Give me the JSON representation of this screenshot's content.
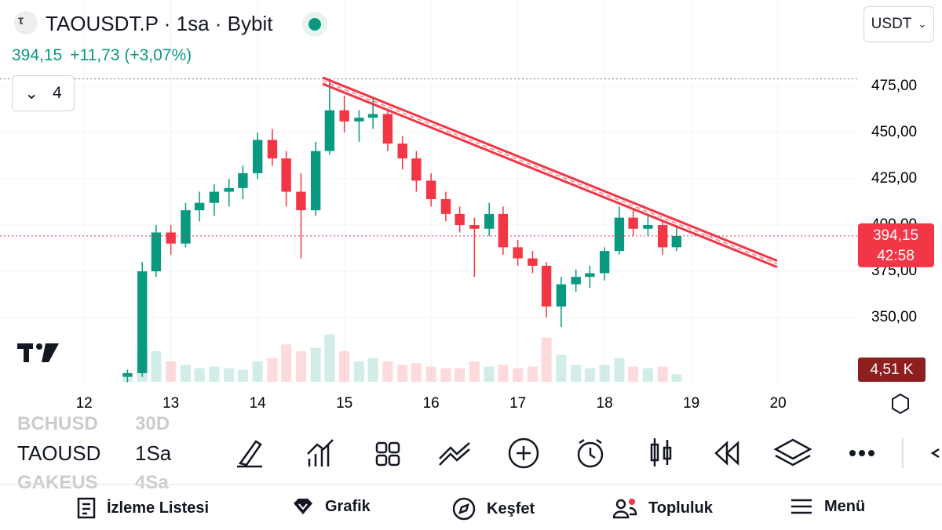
{
  "header": {
    "symbol": "TAOUSDT.P · 1sa · Bybit",
    "last": "394,15",
    "change": "+11,73 (+3,07%)",
    "currency": "USDT",
    "indicators": "4"
  },
  "chart_data": {
    "type": "candlestick",
    "x": [
      12.5,
      12.67,
      12.83,
      13,
      13.17,
      13.33,
      13.5,
      13.67,
      13.83,
      14,
      14.17,
      14.33,
      14.5,
      14.67,
      14.83,
      15,
      15.17,
      15.33,
      15.5,
      15.67,
      15.83,
      16,
      16.17,
      16.33,
      16.5,
      16.67,
      16.83,
      17,
      17.17,
      17.33,
      17.5,
      17.67,
      17.83,
      18,
      18.17,
      18.33,
      18.5,
      18.67,
      18.83
    ],
    "open": [
      318,
      320,
      375,
      396,
      390,
      408,
      412,
      418,
      420,
      428,
      446,
      436,
      418,
      408,
      440,
      462,
      456,
      458,
      460,
      444,
      436,
      424,
      414,
      406,
      400,
      398,
      406,
      388,
      382,
      378,
      356,
      368,
      372,
      374,
      386,
      404,
      398,
      400,
      388
    ],
    "high": [
      322,
      380,
      400,
      400,
      412,
      418,
      422,
      425,
      432,
      450,
      452,
      440,
      428,
      445,
      479,
      470,
      462,
      468,
      462,
      448,
      440,
      428,
      418,
      410,
      404,
      412,
      410,
      392,
      386,
      380,
      372,
      376,
      378,
      388,
      410,
      408,
      406,
      402,
      400
    ],
    "low": [
      315,
      318,
      372,
      384,
      388,
      402,
      405,
      410,
      414,
      425,
      432,
      410,
      382,
      405,
      438,
      450,
      445,
      452,
      440,
      430,
      418,
      410,
      402,
      396,
      372,
      394,
      384,
      378,
      374,
      350,
      345,
      364,
      366,
      370,
      384,
      394,
      394,
      384,
      386
    ],
    "close": [
      320,
      375,
      396,
      390,
      408,
      412,
      418,
      420,
      428,
      446,
      436,
      418,
      408,
      440,
      462,
      456,
      458,
      460,
      444,
      436,
      424,
      414,
      406,
      400,
      398,
      406,
      388,
      382,
      378,
      356,
      368,
      372,
      374,
      386,
      404,
      398,
      400,
      388,
      394.15
    ],
    "up_color": "#089981",
    "down_color": "#f23645",
    "xlim": [
      11.03,
      20.94
    ],
    "xticks": [
      12,
      13,
      14,
      15,
      16,
      17,
      18,
      19,
      20
    ],
    "ylim": [
      315.3,
      521.6
    ],
    "yticks": [
      {
        "value": 475,
        "label": "475,00"
      },
      {
        "value": 450,
        "label": "450,00"
      },
      {
        "value": 425,
        "label": "425,00"
      },
      {
        "value": 400,
        "label": "400,00"
      },
      {
        "value": 375,
        "label": "375,00"
      },
      {
        "value": 350,
        "label": "350,00"
      }
    ],
    "last_price": {
      "value": 394.15,
      "label": "394,15"
    },
    "countdown": "42:58",
    "trendline": {
      "x": [
        14.75,
        19.99
      ],
      "y": [
        478,
        379
      ],
      "color": "#f23645"
    },
    "volume": {
      "ylim": [
        0,
        60
      ],
      "values": [
        3,
        20,
        18,
        12,
        10,
        8,
        9,
        8,
        7,
        12,
        14,
        22,
        18,
        20,
        28,
        18,
        12,
        14,
        12,
        10,
        11,
        9,
        8,
        8,
        12,
        9,
        10,
        8,
        9,
        26,
        16,
        10,
        8,
        10,
        14,
        9,
        8,
        9,
        4.51
      ],
      "last_label": "4,51 K"
    }
  },
  "toolbar": {
    "symbol": "TAOUSD",
    "interval": "1Sa",
    "ghost": [
      "BCHUSD",
      "30D",
      "GAKEUS",
      "4Sa"
    ]
  },
  "nav": [
    "İzleme Listesi",
    "Grafik",
    "Keşfet",
    "Topluluk",
    "Menü"
  ]
}
